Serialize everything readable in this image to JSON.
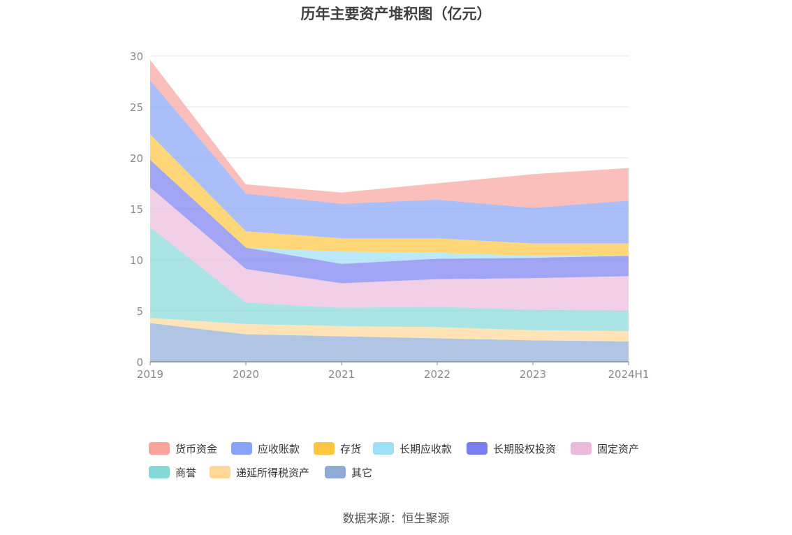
{
  "chart_data": {
    "type": "area",
    "stacked": true,
    "title": "历年主要资产堆积图（亿元）",
    "source": "数据来源：恒生聚源",
    "x": [
      "2019",
      "2020",
      "2021",
      "2022",
      "2023",
      "2024H1"
    ],
    "ylim": [
      0,
      30
    ],
    "yticks": [
      "0",
      "5",
      "10",
      "15",
      "20",
      "25",
      "30"
    ],
    "grid": true,
    "legend_position": "bottom",
    "series": [
      {
        "name": "其它",
        "color": "#8facd7",
        "values": [
          3.8,
          2.7,
          2.5,
          2.3,
          2.1,
          2.0
        ]
      },
      {
        "name": "递延所得税资产",
        "color": "#ffd898",
        "values": [
          0.5,
          1.0,
          1.0,
          1.1,
          1.0,
          1.0
        ]
      },
      {
        "name": "商誉",
        "color": "#87d8d8",
        "values": [
          8.9,
          2.1,
          1.8,
          2.0,
          2.0,
          2.0
        ]
      },
      {
        "name": "固定资产",
        "color": "#ebbadb",
        "values": [
          3.9,
          3.3,
          2.4,
          2.7,
          3.1,
          3.4
        ]
      },
      {
        "name": "长期股权投资",
        "color": "#7a7df0",
        "values": [
          2.7,
          2.1,
          1.9,
          2.0,
          2.0,
          2.0
        ]
      },
      {
        "name": "长期应收款",
        "color": "#9fdff8",
        "values": [
          0.0,
          0.0,
          1.2,
          0.6,
          0.2,
          0.0
        ]
      },
      {
        "name": "存货",
        "color": "#ffc63f",
        "values": [
          2.5,
          1.6,
          1.3,
          1.4,
          1.2,
          1.2
        ]
      },
      {
        "name": "应收账款",
        "color": "#86a4f8",
        "values": [
          5.3,
          3.7,
          3.4,
          3.8,
          3.5,
          4.2
        ]
      },
      {
        "name": "货币资金",
        "color": "#f8a49c",
        "values": [
          2.0,
          0.9,
          1.1,
          1.6,
          3.3,
          3.2
        ]
      }
    ],
    "legend_order": [
      "货币资金",
      "应收账款",
      "存货",
      "长期应收款",
      "长期股权投资",
      "固定资产",
      "商誉",
      "递延所得税资产",
      "其它"
    ]
  }
}
